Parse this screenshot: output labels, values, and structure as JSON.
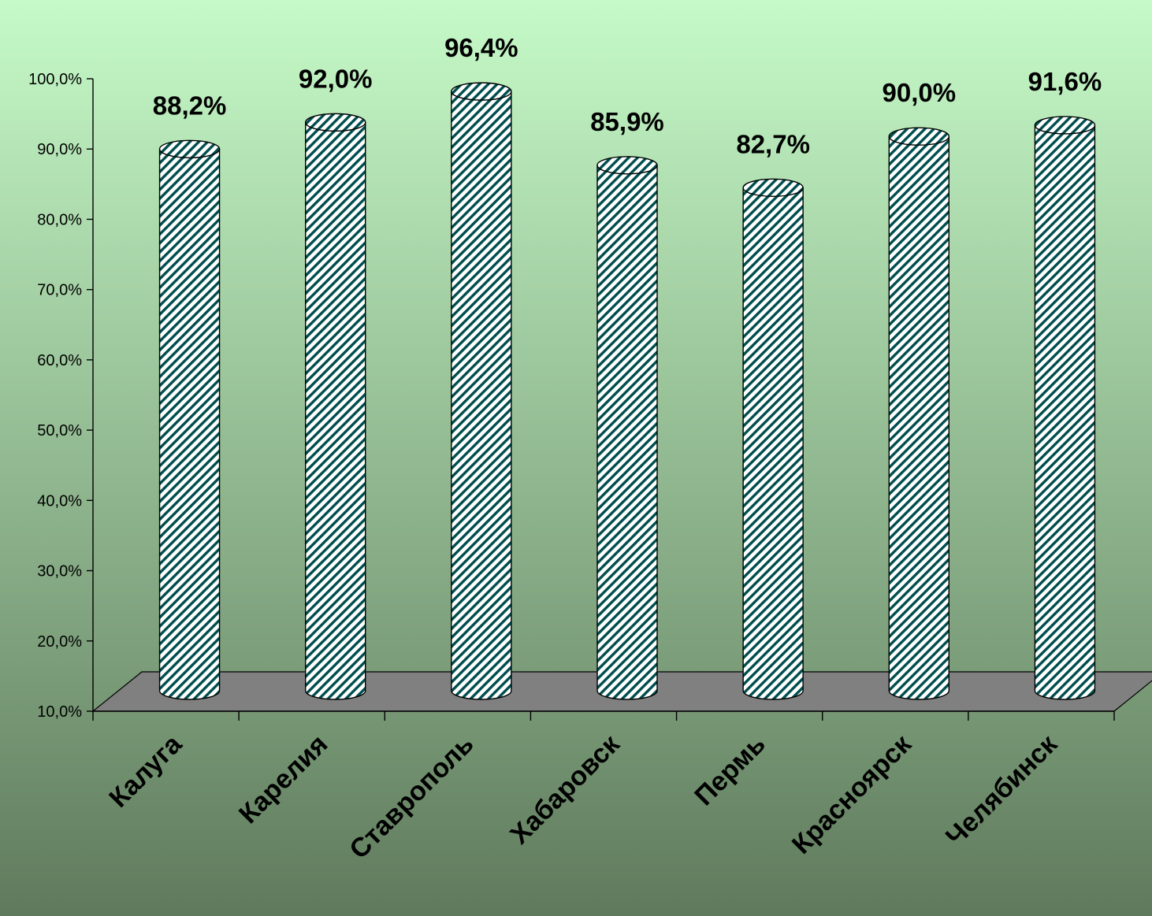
{
  "chart_data": {
    "type": "bar",
    "style": "3d-cylinder",
    "categories": [
      "Калуга",
      "Карелия",
      "Ставрополь",
      "Хабаровск",
      "Пермь",
      "Красноярск",
      "Челябинск"
    ],
    "values": [
      88.2,
      92.0,
      96.4,
      85.9,
      82.7,
      90.0,
      91.6
    ],
    "value_labels": [
      "88,2%",
      "92,0%",
      "96,4%",
      "85,9%",
      "82,7%",
      "90,0%",
      "91,6%"
    ],
    "y_ticks": [
      "10,0%",
      "20,0%",
      "30,0%",
      "40,0%",
      "50,0%",
      "60,0%",
      "70,0%",
      "80,0%",
      "90,0%",
      "100,0%"
    ],
    "ylim": [
      10,
      100
    ],
    "title": "",
    "xlabel": "",
    "ylabel": "",
    "grid": false,
    "legend": "none",
    "colors": {
      "background_top": "#c6fac8",
      "background_bottom": "#5f7a5c",
      "bar_fill": "#ffffff",
      "bar_hatch": "#004d4d",
      "floor": "#808080",
      "axis": "#000000"
    }
  }
}
